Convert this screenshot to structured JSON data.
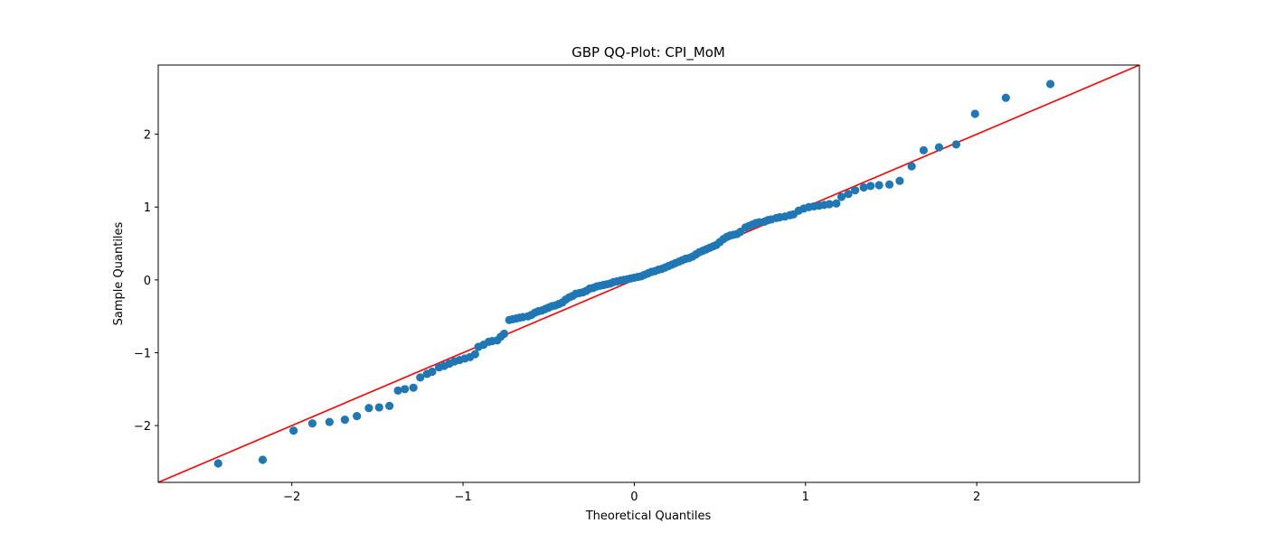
{
  "chart_data": {
    "type": "scatter",
    "title": "GBP QQ-Plot: CPI_MoM",
    "xlabel": "Theoretical Quantiles",
    "ylabel": "Sample Quantiles",
    "xlim": [
      -2.78,
      2.95
    ],
    "ylim": [
      -2.78,
      2.95
    ],
    "x_ticks": [
      -2,
      -1,
      0,
      1,
      2
    ],
    "y_ticks": [
      -2,
      -1,
      0,
      1,
      2
    ],
    "x_tick_labels": [
      "−2",
      "−1",
      "0",
      "1",
      "2"
    ],
    "y_tick_labels": [
      "−2",
      "−1",
      "0",
      "1",
      "2"
    ],
    "grid": false,
    "marker_color": "#1f77b4",
    "reference_line": {
      "color": "#ff0000",
      "slope": 1,
      "intercept": 0
    },
    "points": {
      "x": [
        -2.43,
        -2.17,
        -1.99,
        -1.88,
        -1.78,
        -1.69,
        -1.62,
        -1.55,
        -1.49,
        -1.43,
        -1.38,
        -1.34,
        -1.29,
        -1.25,
        -1.21,
        -1.18,
        -1.14,
        -1.11,
        -1.08,
        -1.05,
        -1.02,
        -0.99,
        -0.96,
        -0.93,
        -0.91,
        -0.88,
        -0.85,
        -0.83,
        -0.8,
        -0.78,
        -0.76,
        -0.73,
        -0.71,
        -0.69,
        -0.67,
        -0.65,
        -0.62,
        -0.6,
        -0.58,
        -0.56,
        -0.54,
        -0.52,
        -0.5,
        -0.48,
        -0.46,
        -0.44,
        -0.42,
        -0.4,
        -0.38,
        -0.36,
        -0.34,
        -0.32,
        -0.3,
        -0.28,
        -0.26,
        -0.24,
        -0.22,
        -0.2,
        -0.18,
        -0.16,
        -0.14,
        -0.12,
        -0.1,
        -0.08,
        -0.06,
        -0.04,
        -0.02,
        0.0,
        0.02,
        0.04,
        0.06,
        0.08,
        0.1,
        0.12,
        0.14,
        0.16,
        0.18,
        0.2,
        0.22,
        0.24,
        0.26,
        0.28,
        0.3,
        0.32,
        0.34,
        0.36,
        0.38,
        0.4,
        0.42,
        0.44,
        0.46,
        0.48,
        0.5,
        0.52,
        0.54,
        0.56,
        0.58,
        0.6,
        0.62,
        0.65,
        0.67,
        0.69,
        0.71,
        0.73,
        0.76,
        0.78,
        0.8,
        0.83,
        0.85,
        0.88,
        0.91,
        0.93,
        0.96,
        0.99,
        1.02,
        1.05,
        1.08,
        1.11,
        1.14,
        1.18,
        1.21,
        1.25,
        1.29,
        1.34,
        1.38,
        1.43,
        1.49,
        1.55,
        1.62,
        1.69,
        1.78,
        1.88,
        1.99,
        2.17,
        2.43
      ],
      "y": [
        -2.52,
        -2.47,
        -2.07,
        -1.97,
        -1.95,
        -1.92,
        -1.87,
        -1.76,
        -1.75,
        -1.73,
        -1.52,
        -1.5,
        -1.48,
        -1.34,
        -1.29,
        -1.26,
        -1.2,
        -1.18,
        -1.15,
        -1.12,
        -1.1,
        -1.08,
        -1.06,
        -1.02,
        -0.92,
        -0.89,
        -0.85,
        -0.84,
        -0.83,
        -0.78,
        -0.74,
        -0.55,
        -0.54,
        -0.53,
        -0.52,
        -0.51,
        -0.5,
        -0.48,
        -0.45,
        -0.43,
        -0.42,
        -0.4,
        -0.38,
        -0.36,
        -0.35,
        -0.33,
        -0.31,
        -0.27,
        -0.24,
        -0.22,
        -0.19,
        -0.18,
        -0.17,
        -0.15,
        -0.12,
        -0.11,
        -0.09,
        -0.08,
        -0.07,
        -0.06,
        -0.05,
        -0.03,
        -0.02,
        -0.01,
        0.0,
        0.01,
        0.02,
        0.03,
        0.04,
        0.05,
        0.07,
        0.09,
        0.11,
        0.12,
        0.14,
        0.15,
        0.17,
        0.19,
        0.21,
        0.23,
        0.25,
        0.27,
        0.29,
        0.3,
        0.32,
        0.35,
        0.38,
        0.4,
        0.42,
        0.44,
        0.46,
        0.48,
        0.52,
        0.56,
        0.59,
        0.61,
        0.62,
        0.63,
        0.66,
        0.72,
        0.74,
        0.76,
        0.78,
        0.79,
        0.8,
        0.82,
        0.83,
        0.85,
        0.86,
        0.87,
        0.89,
        0.9,
        0.95,
        0.98,
        1.0,
        1.01,
        1.02,
        1.03,
        1.04,
        1.05,
        1.14,
        1.18,
        1.23,
        1.27,
        1.29,
        1.3,
        1.31,
        1.36,
        1.56,
        1.78,
        1.82,
        1.86,
        2.28,
        2.5,
        2.69
      ]
    }
  }
}
